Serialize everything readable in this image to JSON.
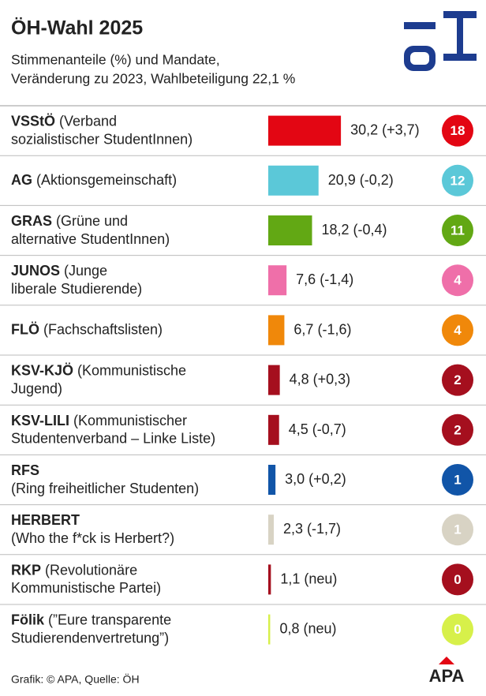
{
  "title": "ÖH-Wahl 2025",
  "subtitle": [
    "Stimmenanteile (%) und Mandate,",
    "Veränderung zu 2023, Wahlbeteiligung 22,1 %"
  ],
  "footer": "Grafik: © APA, Quelle: ÖH",
  "logo": "APA",
  "chart_data": {
    "type": "bar",
    "categories": [
      "VSStÖ",
      "AG",
      "GRAS",
      "JUNOS",
      "FLÖ",
      "KSV-KJÖ",
      "KSV-LILI",
      "RFS",
      "HERBERT",
      "RKP",
      "Fölik"
    ],
    "descriptions": [
      [
        "(Verband",
        "sozialistischer StudentInnen)"
      ],
      [
        "(Aktionsgemeinschaft)"
      ],
      [
        "(Grüne und",
        "alternative StudentInnen)"
      ],
      [
        "(Junge",
        "liberale Studierende)"
      ],
      [
        "(Fachschaftslisten)"
      ],
      [
        "(Kommunistische",
        "Jugend)"
      ],
      [
        "(Kommunistischer",
        "Studentenverband – Linke Liste)"
      ],
      [
        "(Ring freiheitlicher Studenten)"
      ],
      [
        "(Who the f*ck is Herbert?)"
      ],
      [
        "(Revolutionäre",
        "Kommunistische Partei)"
      ],
      [
        "(”Eure transparente",
        "Studierendenvertretung”)"
      ]
    ],
    "description_inline": [
      true,
      true,
      true,
      true,
      true,
      true,
      true,
      false,
      false,
      true,
      true
    ],
    "values": [
      30.2,
      20.9,
      18.2,
      7.6,
      6.7,
      4.8,
      4.5,
      3.0,
      2.3,
      1.1,
      0.8
    ],
    "value_labels": [
      "30,2",
      "20,9",
      "18,2",
      "7,6",
      "6,7",
      "4,8",
      "4,5",
      "3,0",
      "2,3",
      "1,1",
      "0,8"
    ],
    "changes": [
      3.7,
      -0.2,
      -0.4,
      -1.4,
      -1.6,
      0.3,
      -0.7,
      0.2,
      -1.7,
      null,
      null
    ],
    "change_labels": [
      "(+3,7)",
      "(-0,2)",
      "(-0,4)",
      "(-1,4)",
      "(-1,6)",
      "(+0,3)",
      "(-0,7)",
      "(+0,2)",
      "(-1,7)",
      "(neu)",
      "(neu)"
    ],
    "mandates": [
      18,
      12,
      11,
      4,
      4,
      2,
      2,
      1,
      1,
      0,
      0
    ],
    "colors": [
      "#e30613",
      "#5bc8d8",
      "#62a814",
      "#ef6fa9",
      "#f0880a",
      "#a50f1e",
      "#a50f1e",
      "#1155a8",
      "#d8d3c4",
      "#a50f1e",
      "#d7f04a"
    ]
  }
}
